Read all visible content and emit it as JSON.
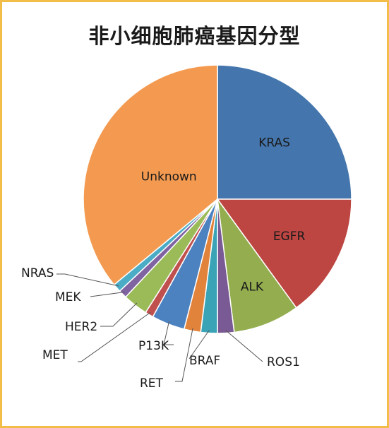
{
  "chart_data": {
    "type": "pie",
    "title": "非小细胞肺癌基因分型",
    "start": "12 o'clock, clockwise",
    "slices": [
      {
        "label": "KRAS",
        "value": 25.0,
        "color": "#4476ad"
      },
      {
        "label": "EGFR",
        "value": 15.0,
        "color": "#bd4642"
      },
      {
        "label": "ALK",
        "value": 8.0,
        "color": "#93ad4f"
      },
      {
        "label": "ROS1",
        "value": 2.0,
        "color": "#7a5a94"
      },
      {
        "label": "BRAF",
        "value": 2.0,
        "color": "#3aa3b6"
      },
      {
        "label": "RET",
        "value": 2.0,
        "color": "#e2833b"
      },
      {
        "label": "P13K",
        "value": 4.0,
        "color": "#4d82c0"
      },
      {
        "label": "MET",
        "value": 1.0,
        "color": "#c0504d"
      },
      {
        "label": "HER2",
        "value": 3.0,
        "color": "#9bbb59"
      },
      {
        "label": "MEK",
        "value": 1.0,
        "color": "#8064a2"
      },
      {
        "label": "NRAS",
        "value": 1.0,
        "color": "#4bacc6"
      },
      {
        "label": "Unknown",
        "value": 36.0,
        "color": "#f39a50"
      }
    ]
  }
}
